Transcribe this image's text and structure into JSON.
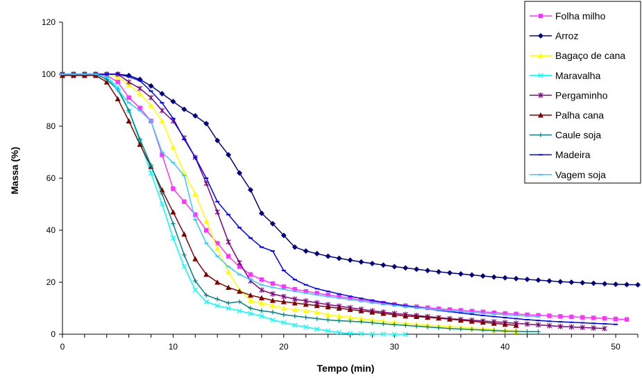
{
  "chart_data": {
    "type": "line",
    "xlabel": "Tempo (min)",
    "ylabel": "Massa (%)",
    "xlim": [
      0,
      52
    ],
    "ylim": [
      0,
      120
    ],
    "xticks": [
      0,
      10,
      20,
      30,
      40,
      50
    ],
    "yticks": [
      0,
      20,
      40,
      60,
      80,
      100,
      120
    ],
    "grid": false,
    "legend_position": "top-right",
    "series": [
      {
        "name": "Folha milho",
        "color": "#ff33ff",
        "marker": "square",
        "x": [
          0,
          1,
          2,
          3,
          4,
          5,
          6,
          7,
          8,
          9,
          10,
          11,
          12,
          13,
          14,
          15,
          16,
          17,
          18,
          19,
          20,
          21,
          22,
          23,
          24,
          25,
          26,
          27,
          28,
          29,
          30,
          31,
          32,
          33,
          34,
          35,
          36,
          37,
          38,
          39,
          40,
          41,
          42,
          43,
          44,
          45,
          46,
          47,
          48,
          49,
          50,
          51
        ],
        "y": [
          100,
          100,
          100,
          100,
          99.5,
          97,
          91,
          87,
          82,
          69,
          56,
          51,
          46,
          40,
          35,
          30,
          26,
          23,
          21,
          19.5,
          18.3,
          17.3,
          16.5,
          15.8,
          15.1,
          14.5,
          13.8,
          13.2,
          12.6,
          12,
          11.5,
          11,
          10.6,
          10.2,
          9.8,
          9.5,
          9.2,
          8.9,
          8.6,
          8.3,
          8,
          7.8,
          7.5,
          7.3,
          7.1,
          6.9,
          6.7,
          6.5,
          6.3,
          6.1,
          5.9,
          5.7
        ]
      },
      {
        "name": "Arroz",
        "color": "#000080",
        "marker": "diamond",
        "x": [
          0,
          1,
          2,
          3,
          4,
          5,
          6,
          7,
          8,
          9,
          10,
          11,
          12,
          13,
          14,
          15,
          16,
          17,
          18,
          19,
          20,
          21,
          22,
          23,
          24,
          25,
          26,
          27,
          28,
          29,
          30,
          31,
          32,
          33,
          34,
          35,
          36,
          37,
          38,
          39,
          40,
          41,
          42,
          43,
          44,
          45,
          46,
          47,
          48,
          49,
          50,
          51,
          52
        ],
        "y": [
          100,
          100,
          100,
          100,
          100,
          100,
          99.5,
          98,
          95.5,
          92.5,
          89.5,
          86.5,
          84,
          81,
          74.5,
          69,
          62,
          55.5,
          46.5,
          42.5,
          38,
          33.5,
          32,
          31,
          30,
          29.2,
          28.5,
          27.8,
          27.2,
          26.6,
          26,
          25.5,
          25,
          24.5,
          24,
          23.6,
          23.2,
          22.8,
          22.4,
          22,
          21.7,
          21.4,
          21.1,
          20.8,
          20.5,
          20.2,
          20,
          19.8,
          19.6,
          19.4,
          19.2,
          19.1,
          19
        ]
      },
      {
        "name": "Bagaço de cana",
        "color": "#ffff00",
        "marker": "triangle",
        "x": [
          0,
          1,
          2,
          3,
          4,
          5,
          6,
          7,
          8,
          9,
          10,
          11,
          12,
          13,
          14,
          15,
          16,
          17,
          18,
          19,
          20,
          21,
          22,
          23,
          24,
          25,
          26,
          27,
          28,
          29,
          30,
          31,
          32,
          33,
          34,
          35,
          36,
          37,
          38,
          39,
          40,
          41
        ],
        "y": [
          100,
          100,
          100,
          100,
          100,
          99,
          96,
          92.5,
          88,
          82,
          72,
          62,
          54,
          43.5,
          33,
          24,
          17,
          13,
          12,
          11,
          10,
          9.5,
          9,
          8.5,
          7.5,
          7,
          6.5,
          6,
          5.5,
          5,
          4.5,
          4.2,
          3.8,
          3.5,
          3.2,
          3,
          2.7,
          2.4,
          2.1,
          1.8,
          1.5,
          1.2
        ]
      },
      {
        "name": "Maravalha",
        "color": "#00ffff",
        "marker": "x",
        "x": [
          0,
          1,
          2,
          3,
          4,
          5,
          6,
          7,
          8,
          9,
          10,
          11,
          12,
          13,
          14,
          15,
          16,
          17,
          18,
          19,
          20,
          21,
          22,
          23,
          24,
          25,
          26,
          27,
          28,
          29,
          30,
          31
        ],
        "y": [
          100,
          100,
          100,
          100,
          99,
          95,
          86,
          74,
          62,
          50,
          37,
          26,
          17,
          12.5,
          11,
          10,
          9,
          8,
          7,
          5.5,
          4.5,
          3.5,
          2.8,
          2,
          1.3,
          0.7,
          0.3,
          0.2,
          0.1,
          0.1,
          0,
          0
        ]
      },
      {
        "name": "Pergaminho",
        "color": "#800080",
        "marker": "star",
        "x": [
          0,
          1,
          2,
          3,
          4,
          5,
          6,
          7,
          8,
          9,
          10,
          11,
          12,
          13,
          14,
          15,
          16,
          17,
          18,
          19,
          20,
          21,
          22,
          23,
          24,
          25,
          26,
          27,
          28,
          29,
          30,
          31,
          32,
          33,
          34,
          35,
          36,
          37,
          38,
          39,
          40,
          41,
          42,
          43,
          44,
          45,
          46,
          47,
          48,
          49
        ],
        "y": [
          100,
          100,
          100,
          100,
          100,
          100,
          97,
          94.5,
          91,
          86,
          82,
          75.5,
          68,
          58,
          47,
          35.5,
          27.5,
          20.5,
          17,
          15.5,
          14.5,
          13.5,
          12.8,
          12.1,
          11.4,
          10.8,
          10.2,
          9.6,
          9,
          8.5,
          8,
          7.6,
          7.2,
          6.8,
          6.4,
          6,
          5.7,
          5.4,
          5.1,
          4.8,
          4.5,
          4.2,
          3.9,
          3.6,
          3.3,
          3,
          2.8,
          2.6,
          2.4,
          2.2
        ]
      },
      {
        "name": "Palha cana",
        "color": "#800000",
        "marker": "triangle",
        "x": [
          0,
          1,
          2,
          3,
          4,
          5,
          6,
          7,
          8,
          9,
          10,
          11,
          12,
          13,
          14,
          15,
          16,
          17,
          18,
          19,
          20,
          21,
          22,
          23,
          24,
          25,
          26,
          27,
          28,
          29,
          30,
          31,
          32,
          33,
          34,
          35,
          36,
          37,
          38,
          39,
          40,
          41
        ],
        "y": [
          99.5,
          99.5,
          99.5,
          99.5,
          97,
          90.5,
          82,
          73,
          64.5,
          55.5,
          47,
          38.5,
          29,
          23,
          20,
          18,
          16.5,
          15,
          14,
          13,
          12.5,
          12,
          11.5,
          11,
          10.5,
          10,
          9.5,
          9,
          8.5,
          8,
          7.5,
          7,
          6.8,
          6.5,
          6.2,
          5.8,
          5.4,
          5,
          4.6,
          4.2,
          3.8,
          3.4
        ]
      },
      {
        "name": "Caule soja",
        "color": "#008080",
        "marker": "plus",
        "x": [
          0,
          1,
          2,
          3,
          4,
          5,
          6,
          7,
          8,
          9,
          10,
          11,
          12,
          13,
          14,
          15,
          16,
          17,
          18,
          19,
          20,
          21,
          22,
          23,
          24,
          25,
          26,
          27,
          28,
          29,
          30,
          31,
          32,
          33,
          34,
          35,
          36,
          37,
          38,
          39,
          40,
          41,
          42,
          43
        ],
        "y": [
          100,
          100,
          100,
          100,
          98,
          94,
          86,
          75,
          65,
          54,
          42.5,
          30.5,
          20.5,
          15,
          13.5,
          12,
          12.5,
          10,
          9,
          8.5,
          7.5,
          7,
          6.5,
          6,
          5.5,
          5.2,
          5,
          4.8,
          4.4,
          4,
          3.7,
          3.4,
          3.1,
          2.8,
          2.5,
          2.2,
          2,
          1.8,
          1.6,
          1.4,
          1.2,
          1.1,
          1,
          1
        ]
      },
      {
        "name": "Madeira",
        "color": "#0000ff",
        "marker": "dash",
        "x": [
          0,
          1,
          2,
          3,
          4,
          5,
          6,
          7,
          8,
          9,
          10,
          11,
          12,
          13,
          14,
          15,
          16,
          17,
          18,
          19,
          20,
          21,
          22,
          23,
          24,
          25,
          26,
          27,
          28,
          29,
          30,
          31,
          32,
          33,
          34,
          35,
          36,
          37,
          38,
          39,
          40,
          41,
          42,
          43,
          44,
          45,
          46,
          47,
          48,
          49,
          50
        ],
        "y": [
          100,
          100,
          100,
          100,
          100,
          100,
          99,
          97.5,
          93.5,
          89,
          83,
          75,
          68,
          60,
          51,
          46,
          41,
          37,
          33.5,
          32,
          24.5,
          21,
          19,
          17.5,
          16.5,
          15.5,
          14.6,
          13.8,
          13,
          12.3,
          11.6,
          11,
          10.4,
          9.8,
          9.2,
          8.7,
          8.2,
          7.7,
          7.2,
          6.8,
          6.4,
          6,
          5.6,
          5.3,
          5,
          4.8,
          4.6,
          4.4,
          4.2,
          4,
          3.8
        ]
      },
      {
        "name": "Vagem soja",
        "color": "#33ccff",
        "marker": "dash",
        "x": [
          0,
          1,
          2,
          3,
          4,
          5,
          6,
          7,
          8,
          9,
          10,
          11,
          12,
          13,
          14,
          15,
          16,
          17,
          18,
          19,
          20,
          21,
          22,
          23,
          24,
          25,
          26,
          27,
          28,
          29,
          30,
          31,
          32,
          33,
          34,
          35,
          36,
          37,
          38,
          39,
          40,
          41,
          42,
          43
        ],
        "y": [
          100,
          100,
          100,
          100,
          99,
          94,
          89,
          86,
          82,
          70,
          66,
          61,
          44,
          35,
          30,
          26,
          23,
          21,
          19,
          18,
          17.3,
          16.5,
          15.8,
          15.1,
          14.5,
          13.9,
          13.3,
          12.7,
          12.1,
          11.6,
          11.1,
          10.6,
          10.2,
          9.8,
          9.4,
          9,
          8.7,
          8.4,
          8.1,
          7.8,
          7.5,
          7.2,
          7,
          6.8
        ]
      }
    ]
  }
}
